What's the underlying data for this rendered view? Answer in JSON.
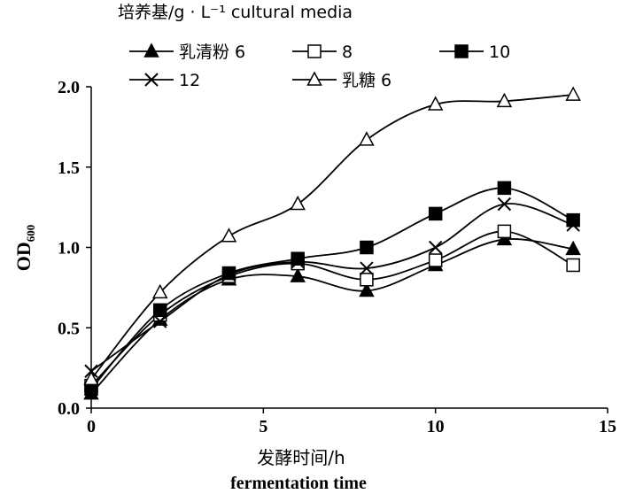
{
  "chart_data": {
    "type": "line",
    "legend_title": "培养基/g · L⁻¹ cultural media",
    "legend_position": "top-left",
    "xlabel": "发酵时间/h",
    "xlabel_en": "fermentation time",
    "ylabel": "OD",
    "ylabel_sub": "600",
    "xlim": [
      0,
      15
    ],
    "ylim": [
      0,
      2.0
    ],
    "xticks": [
      "0",
      "5",
      "10",
      "15"
    ],
    "yticks": [
      "0.0",
      "0.5",
      "1.0",
      "1.5",
      "2.0"
    ],
    "grid": false,
    "x": [
      0,
      2,
      4,
      6,
      8,
      10,
      12,
      14
    ],
    "series": [
      {
        "name": "乳清粉 6",
        "marker": "filled-triangle",
        "values": [
          0.09,
          0.55,
          0.8,
          0.82,
          0.73,
          0.89,
          1.05,
          0.99
        ]
      },
      {
        "name": "8",
        "marker": "open-square",
        "values": [
          0.14,
          0.58,
          0.82,
          0.9,
          0.8,
          0.92,
          1.1,
          0.89
        ]
      },
      {
        "name": "10",
        "marker": "filled-square",
        "values": [
          0.12,
          0.61,
          0.84,
          0.93,
          1.0,
          1.21,
          1.37,
          1.17
        ]
      },
      {
        "name": "12",
        "marker": "cross",
        "values": [
          0.23,
          0.54,
          0.83,
          0.91,
          0.87,
          1.0,
          1.27,
          1.14
        ]
      },
      {
        "name": "乳糖 6",
        "marker": "open-triangle",
        "values": [
          0.18,
          0.72,
          1.07,
          1.27,
          1.67,
          1.89,
          1.91,
          1.95
        ]
      }
    ]
  }
}
